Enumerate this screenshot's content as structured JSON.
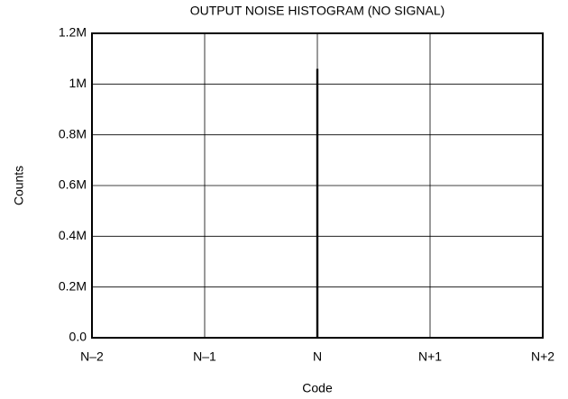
{
  "chart_data": {
    "type": "bar",
    "title": "OUTPUT NOISE HISTOGRAM (NO SIGNAL)",
    "x_label": "Code",
    "y_label": "Counts",
    "categories": [
      "N–2",
      "N–1",
      "N",
      "N+1",
      "N+2"
    ],
    "values": [
      0,
      0,
      1060000,
      0,
      0
    ],
    "color": "#000000",
    "ylim": [
      0,
      1200000
    ],
    "yticks": [
      {
        "value": 0,
        "label": "0.0"
      },
      {
        "value": 200000,
        "label": "0.2M"
      },
      {
        "value": 400000,
        "label": "0.4M"
      },
      {
        "value": 600000,
        "label": "0.6M"
      },
      {
        "value": 800000,
        "label": "0.8M"
      },
      {
        "value": 1000000,
        "label": "1M"
      },
      {
        "value": 1200000,
        "label": "1.2M"
      }
    ],
    "grid": true
  }
}
